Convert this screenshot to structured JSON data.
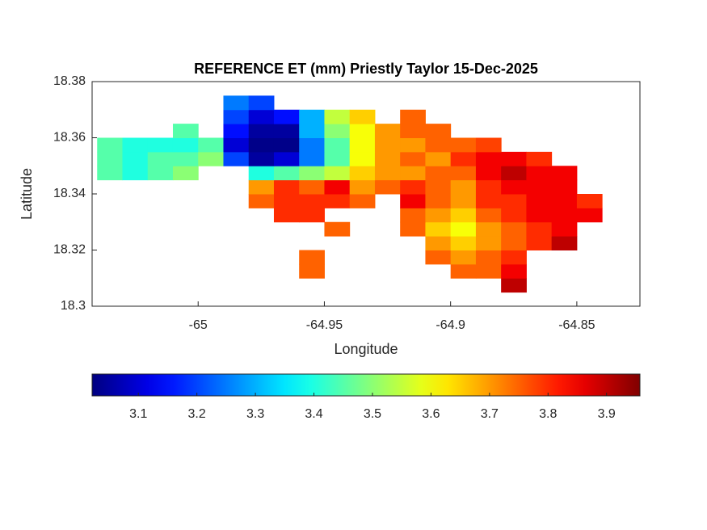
{
  "chart_data": {
    "type": "heatmap",
    "title": "REFERENCE ET (mm) Priestly Taylor 15-Dec-2025",
    "xlabel": "Longitude",
    "ylabel": "Latitude",
    "xlim": [
      -65.042,
      -64.825
    ],
    "ylim": [
      18.3,
      18.38
    ],
    "xticks": [
      -65,
      -64.95,
      -64.9,
      -64.85
    ],
    "yticks": [
      18.3,
      18.32,
      18.34,
      18.36,
      18.38
    ],
    "colormap": "jet",
    "clim": [
      3.021,
      3.957
    ],
    "cticks": [
      3.1,
      3.2,
      3.3,
      3.4,
      3.5,
      3.6,
      3.7,
      3.8,
      3.9
    ],
    "x": [
      -65.035,
      -65.025,
      -65.015,
      -65.005,
      -64.995,
      -64.985,
      -64.975,
      -64.965,
      -64.955,
      -64.945,
      -64.935,
      -64.925,
      -64.915,
      -64.905,
      -64.895,
      -64.885,
      -64.875,
      -64.865,
      -64.855,
      -64.845
    ],
    "y": [
      18.3075,
      18.3125,
      18.3175,
      18.3225,
      18.3275,
      18.3325,
      18.3375,
      18.3425,
      18.3475,
      18.3525,
      18.3575,
      18.3625,
      18.3675,
      18.3725
    ],
    "z": [
      [
        null,
        null,
        null,
        null,
        null,
        null,
        null,
        null,
        null,
        null,
        null,
        null,
        null,
        null,
        null,
        null,
        3.9,
        null,
        null,
        null
      ],
      [
        null,
        null,
        null,
        null,
        null,
        null,
        null,
        null,
        3.75,
        null,
        null,
        null,
        null,
        null,
        3.75,
        3.75,
        3.85,
        null,
        null,
        null
      ],
      [
        null,
        null,
        null,
        null,
        null,
        null,
        null,
        null,
        3.75,
        null,
        null,
        null,
        null,
        3.75,
        3.7,
        3.75,
        3.8,
        null,
        null,
        null
      ],
      [
        null,
        null,
        null,
        null,
        null,
        null,
        null,
        null,
        null,
        null,
        null,
        null,
        null,
        3.7,
        3.65,
        3.7,
        3.75,
        3.8,
        3.9,
        null
      ],
      [
        null,
        null,
        null,
        null,
        null,
        null,
        null,
        null,
        null,
        3.75,
        null,
        null,
        3.75,
        3.65,
        3.6,
        3.7,
        3.75,
        3.8,
        3.85,
        null
      ],
      [
        null,
        null,
        null,
        null,
        null,
        null,
        null,
        3.8,
        3.8,
        null,
        null,
        null,
        3.75,
        3.7,
        3.65,
        3.75,
        3.8,
        3.85,
        3.85,
        3.85
      ],
      [
        null,
        null,
        null,
        null,
        null,
        null,
        3.75,
        3.8,
        3.8,
        3.8,
        3.75,
        null,
        3.85,
        3.75,
        3.7,
        3.8,
        3.8,
        3.85,
        3.85,
        3.8
      ],
      [
        null,
        null,
        null,
        null,
        null,
        null,
        3.7,
        3.8,
        3.75,
        3.85,
        3.7,
        3.75,
        3.8,
        3.75,
        3.7,
        3.8,
        3.85,
        3.85,
        3.85,
        null
      ],
      [
        3.45,
        3.4,
        3.45,
        3.5,
        null,
        null,
        3.4,
        3.45,
        3.5,
        3.55,
        3.65,
        3.7,
        3.7,
        3.75,
        3.75,
        3.85,
        3.9,
        3.85,
        3.85,
        null
      ],
      [
        3.45,
        3.4,
        3.45,
        3.45,
        3.5,
        3.2,
        3.05,
        3.1,
        3.25,
        3.45,
        3.6,
        3.7,
        3.75,
        3.7,
        3.8,
        3.85,
        3.85,
        3.8,
        null,
        null
      ],
      [
        3.45,
        3.4,
        3.4,
        3.4,
        3.45,
        3.1,
        3.03,
        3.03,
        3.25,
        3.45,
        3.6,
        3.7,
        3.7,
        3.75,
        3.75,
        3.78,
        null,
        null,
        null,
        null
      ],
      [
        null,
        null,
        null,
        3.45,
        null,
        3.15,
        3.05,
        3.05,
        3.3,
        3.5,
        3.6,
        3.7,
        3.75,
        3.75,
        null,
        null,
        null,
        null,
        null,
        null
      ],
      [
        null,
        null,
        null,
        null,
        null,
        3.2,
        3.1,
        3.15,
        3.3,
        3.55,
        3.65,
        null,
        3.75,
        null,
        null,
        null,
        null,
        null,
        null,
        null
      ],
      [
        null,
        null,
        null,
        null,
        null,
        3.25,
        3.2,
        null,
        null,
        null,
        null,
        null,
        null,
        null,
        null,
        null,
        null,
        null,
        null,
        null
      ]
    ]
  }
}
